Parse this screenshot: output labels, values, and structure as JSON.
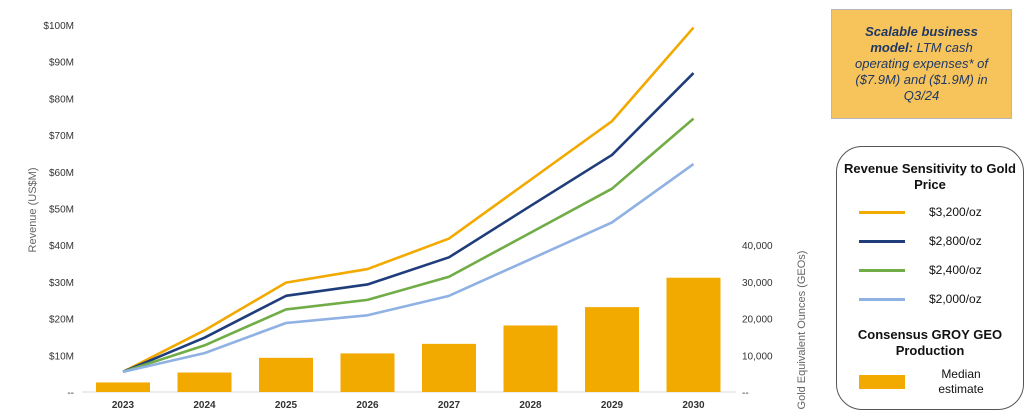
{
  "chart_data": {
    "type": "line+bar",
    "categories": [
      "2023",
      "2024",
      "2025",
      "2026",
      "2027",
      "2028",
      "2029",
      "2030"
    ],
    "ylabel": "Revenue (US$M)",
    "y2label": "Gold Equivalent Ounces (GEOs)",
    "ylim": [
      0,
      100
    ],
    "y2lim": [
      0,
      40000
    ],
    "yticks": [
      "--",
      "$10M",
      "$20M",
      "$30M",
      "$40M",
      "$50M",
      "$60M",
      "$70M",
      "$80M",
      "$90M",
      "$100M"
    ],
    "y2ticks": [
      "--",
      "10,000",
      "20,000",
      "30,000",
      "40,000"
    ],
    "series": [
      {
        "name": "$3,200/oz",
        "color": "#f2a900",
        "values": [
          5.5,
          16.8,
          29.8,
          33.5,
          41.8,
          57.8,
          73.8,
          99.3
        ]
      },
      {
        "name": "$2,800/oz",
        "color": "#1f3d7a",
        "values": [
          5.5,
          14.8,
          26.2,
          29.3,
          36.7,
          50.7,
          64.6,
          86.9
        ]
      },
      {
        "name": "$2,400/oz",
        "color": "#70ad47",
        "values": [
          5.5,
          12.7,
          22.5,
          25.1,
          31.4,
          43.4,
          55.4,
          74.5
        ]
      },
      {
        "name": "$2,000/oz",
        "color": "#8fb1e3",
        "values": [
          5.5,
          10.6,
          18.8,
          20.9,
          26.2,
          36.2,
          46.2,
          62.1
        ]
      }
    ],
    "bars": {
      "name": "Median estimate",
      "color": "#f2a900",
      "values": [
        2600,
        5300,
        9300,
        10500,
        13100,
        18100,
        23100,
        31100
      ]
    },
    "legend_position": "right",
    "grid": false
  },
  "callout": {
    "bold": "Scalable business model:",
    "text": " LTM cash operating expenses* of ($7.9M) and ($1.9M) in Q3/24"
  },
  "legend": {
    "title": "Revenue Sensitivity to Gold Price",
    "items": [
      {
        "label": "$3,200/oz",
        "color": "#f2a900"
      },
      {
        "label": "$2,800/oz",
        "color": "#1f3d7a"
      },
      {
        "label": "$2,400/oz",
        "color": "#70ad47"
      },
      {
        "label": "$2,000/oz",
        "color": "#8fb1e3"
      }
    ],
    "bar_title": "Consensus GROY GEO Production",
    "bar_label": "Median estimate",
    "bar_color": "#f2a900"
  }
}
